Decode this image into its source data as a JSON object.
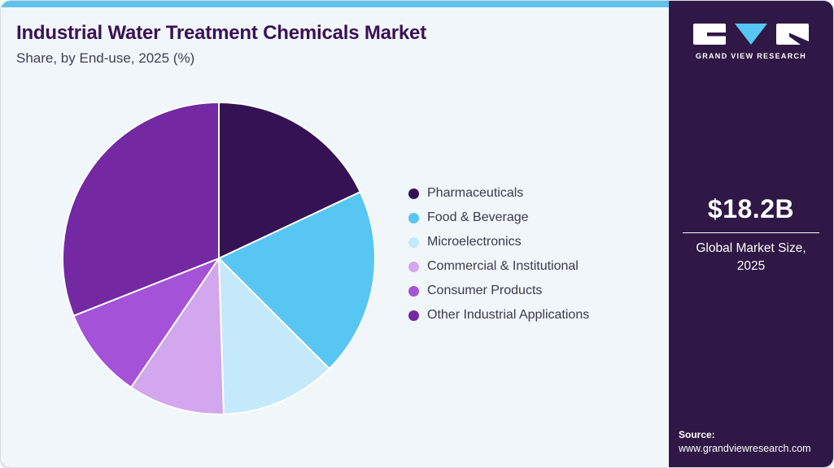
{
  "header": {
    "title": "Industrial Water Treatment Chemicals Market",
    "subtitle": "Share, by End-use, 2025 (%)"
  },
  "chart_data": {
    "type": "pie",
    "title": "Industrial Water Treatment Chemicals Market Share, by End-use, 2025 (%)",
    "unit": "percent share (estimated from slice angles)",
    "start_angle": "12 o'clock",
    "direction": "clockwise",
    "legend_position": "right",
    "segments": [
      {
        "label": "Pharmaceuticals",
        "value": 18,
        "color": "#341253"
      },
      {
        "label": "Food & Beverage",
        "value": 19.5,
        "color": "#58c6f2"
      },
      {
        "label": "Microelectronics",
        "value": 12,
        "color": "#c4e9fa"
      },
      {
        "label": "Commercial & Institutional",
        "value": 10,
        "color": "#d2a7ed"
      },
      {
        "label": "Consumer Products",
        "value": 9.5,
        "color": "#a452d7"
      },
      {
        "label": "Other Industrial Applications",
        "value": 31,
        "color": "#7428a2"
      }
    ]
  },
  "sidebar": {
    "brand": "GRAND VIEW RESEARCH",
    "market_size_value": "$18.2B",
    "market_size_label": "Global Market Size,",
    "market_size_year": "2025",
    "source_label": "Source:",
    "source_url": "www.grandviewresearch.com"
  },
  "theme": {
    "topbar_color": "#5fc3ee",
    "main_background": "#f0f6fa",
    "sidebar_background": "#2f1845",
    "title_color": "#3a1156",
    "legend_text_color": "#3a3a4c",
    "logo_triangle_color": "#58c6f2"
  }
}
